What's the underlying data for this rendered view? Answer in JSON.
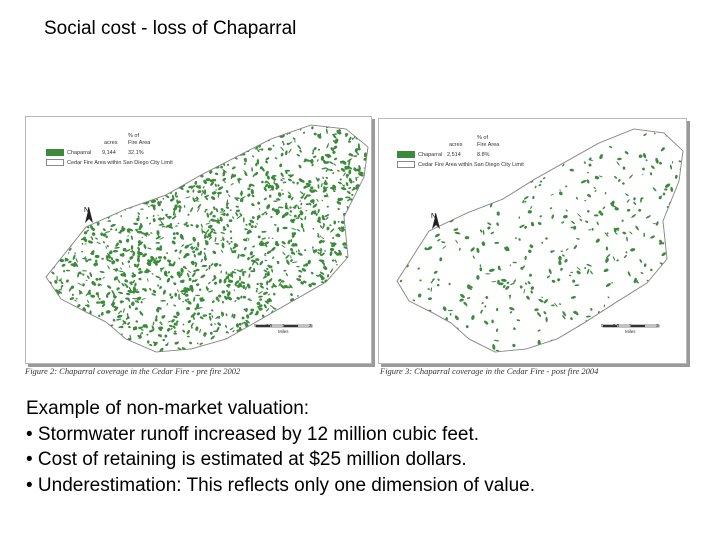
{
  "slide": {
    "title": "Social cost - loss of Chaparral"
  },
  "maps": [
    {
      "legend": {
        "col_pct_header": "% of",
        "col_acres": "acres",
        "col_area": "Fire Area",
        "chaparral_label": "Chaparral",
        "chaparral_acres": "9,144",
        "chaparral_pct": "32.1%",
        "boundary_label": "Cedar Fire Area within San Diego City Limit"
      },
      "north": "N",
      "scale_ticks": [
        "0",
        "0.5",
        "1",
        "2"
      ],
      "scale_unit": "Miles",
      "caption": "Figure 2: Chaparral coverage in the Cedar Fire - pre fire 2002",
      "fill_level": 0.32
    },
    {
      "legend": {
        "col_pct_header": "% of",
        "col_acres": "acres",
        "col_area": "Fire Area",
        "chaparral_label": "Chaparral",
        "chaparral_acres": "2,514",
        "chaparral_pct": "8.8%",
        "boundary_label": "Cedar Fire Area within San Diego City Limit"
      },
      "north": "N",
      "scale_ticks": [
        "0",
        "0.5",
        "1",
        "2"
      ],
      "scale_unit": "Miles",
      "caption": "Figure 3: Chaparral coverage in the Cedar Fire - post fire 2004",
      "fill_level": 0.088
    }
  ],
  "body": {
    "lines": [
      "Example of non-market valuation:",
      "• Stormwater runoff increased by 12 million cubic feet.",
      "• Cost of retaining is estimated at $25 million dollars.",
      "• Underestimation: This reflects only one dimension of value."
    ]
  },
  "colors": {
    "chaparral": "#3c8a3c",
    "boundary": "#999999"
  }
}
